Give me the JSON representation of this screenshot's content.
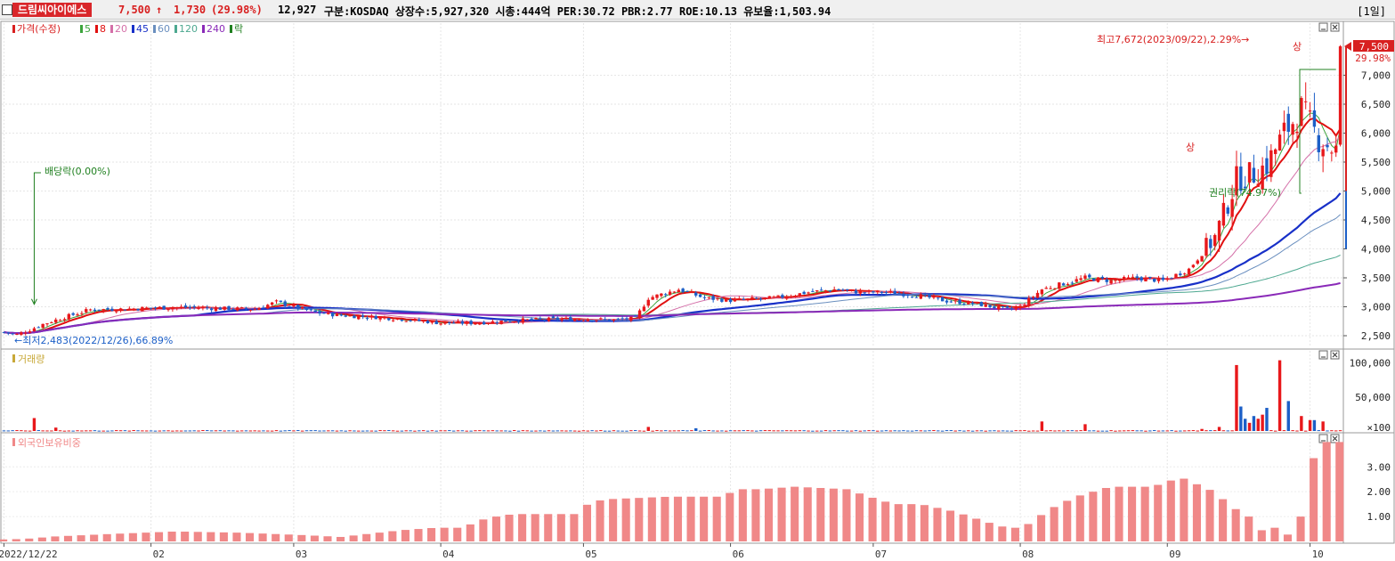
{
  "header": {
    "stock_name": "드림씨아이에스",
    "price": "7,500",
    "change_arrow": "↑",
    "change": "1,730",
    "change_pct": "(29.98%)",
    "volume": "12,927",
    "stats": "구분:KOSDAQ 상장수:5,927,320 시총:444억 PER:30.72 PBR:2.77 ROE:10.13 유보율:1,503.94",
    "period": "[1일]"
  },
  "colors": {
    "up": "#e8181b",
    "down": "#1c5fc7",
    "ma5": "#3ca43c",
    "ma8": "#e01010",
    "ma20": "#d46fa8",
    "ma45": "#1830c8",
    "ma60": "#6a8fbf",
    "ma120": "#4da890",
    "ma240": "#8a2ab8",
    "foreign": "#f08888"
  },
  "icons": [
    "checkbox-icon",
    "panel-minimize-icon",
    "panel-close-icon",
    "price-marker-icon"
  ],
  "chart_data": [
    {
      "type": "candlestick",
      "panel": "price",
      "legend": [
        {
          "label": "가격(수정)",
          "color": "#d82020"
        },
        {
          "label": "5",
          "color": "#3ca43c"
        },
        {
          "label": "8",
          "color": "#e01010"
        },
        {
          "label": "20",
          "color": "#d46fa8"
        },
        {
          "label": "45",
          "color": "#1830c8"
        },
        {
          "label": "60",
          "color": "#6a8fbf"
        },
        {
          "label": "120",
          "color": "#4da890"
        },
        {
          "label": "240",
          "color": "#8a2ab8"
        },
        {
          "label": "락",
          "color": "#208020"
        }
      ],
      "ylim": [
        2300,
        7900
      ],
      "yticks": [
        "2,500",
        "3,000",
        "3,500",
        "4,000",
        "4,500",
        "5,000",
        "5,500",
        "6,000",
        "6,500",
        "7,000"
      ],
      "xticks": [
        "2022/12/22",
        "02",
        "03",
        "04",
        "05",
        "06",
        "07",
        "08",
        "09",
        "10"
      ],
      "xtick_index": [
        0,
        34,
        67,
        101,
        134,
        168,
        201,
        235,
        269,
        302
      ],
      "n_bars": 310,
      "price_knots": [
        [
          0,
          2560
        ],
        [
          3,
          2520
        ],
        [
          6,
          2600
        ],
        [
          9,
          2700
        ],
        [
          14,
          2820
        ],
        [
          20,
          2950
        ],
        [
          27,
          2960
        ],
        [
          34,
          2980
        ],
        [
          42,
          2990
        ],
        [
          50,
          2970
        ],
        [
          58,
          2960
        ],
        [
          63,
          3080
        ],
        [
          67,
          3000
        ],
        [
          72,
          2900
        ],
        [
          78,
          2850
        ],
        [
          86,
          2820
        ],
        [
          93,
          2780
        ],
        [
          101,
          2720
        ],
        [
          109,
          2720
        ],
        [
          117,
          2760
        ],
        [
          125,
          2780
        ],
        [
          134,
          2790
        ],
        [
          141,
          2770
        ],
        [
          146,
          2800
        ],
        [
          149,
          3150
        ],
        [
          156,
          3300
        ],
        [
          162,
          3150
        ],
        [
          168,
          3110
        ],
        [
          178,
          3150
        ],
        [
          186,
          3250
        ],
        [
          192,
          3300
        ],
        [
          198,
          3250
        ],
        [
          204,
          3250
        ],
        [
          211,
          3200
        ],
        [
          218,
          3100
        ],
        [
          225,
          3050
        ],
        [
          232,
          2950
        ],
        [
          235,
          3000
        ],
        [
          240,
          3300
        ],
        [
          246,
          3420
        ],
        [
          250,
          3500
        ],
        [
          256,
          3450
        ],
        [
          262,
          3500
        ],
        [
          268,
          3450
        ],
        [
          274,
          3650
        ],
        [
          280,
          4200
        ],
        [
          285,
          5200
        ],
        [
          289,
          5300
        ],
        [
          292,
          5450
        ],
        [
          296,
          6000
        ],
        [
          300,
          6400
        ],
        [
          304,
          5900
        ],
        [
          308,
          5700
        ],
        [
          310,
          7500
        ]
      ],
      "annotations": {
        "high": "최고7,672(2023/09/22),2.29%→",
        "low": "←최저2,483(2022/12/26),66.89%",
        "dividend": "배당락(0.00%)",
        "rights": "권리락(74.97%)",
        "upper_limit": "상",
        "last_price": "7,500",
        "last_pct": "29.98%"
      }
    },
    {
      "type": "bar",
      "panel": "volume",
      "title": "거래량",
      "ylim": [
        0,
        110000
      ],
      "yticks": [
        "100,000",
        "50,000",
        "×100"
      ],
      "spikes": [
        [
          7,
          19000
        ],
        [
          12,
          5000
        ],
        [
          149,
          6000
        ],
        [
          160,
          4000
        ],
        [
          240,
          14000
        ],
        [
          250,
          10000
        ],
        [
          277,
          3000
        ],
        [
          281,
          6000
        ],
        [
          285,
          97000
        ],
        [
          286,
          36000
        ],
        [
          287,
          18000
        ],
        [
          288,
          12000
        ],
        [
          289,
          22000
        ],
        [
          290,
          18000
        ],
        [
          291,
          24000
        ],
        [
          292,
          34000
        ],
        [
          295,
          104000
        ],
        [
          297,
          44000
        ],
        [
          300,
          22000
        ],
        [
          302,
          16000
        ],
        [
          303,
          16000
        ],
        [
          305,
          14000
        ]
      ]
    },
    {
      "type": "bar",
      "panel": "foreign",
      "title": "외국인보유비중",
      "ylim": [
        0,
        4.3
      ],
      "yticks": [
        "1.00",
        "2.00",
        "3.00"
      ],
      "knots": [
        [
          0,
          0.08
        ],
        [
          5,
          0.1
        ],
        [
          12,
          0.2
        ],
        [
          25,
          0.3
        ],
        [
          40,
          0.4
        ],
        [
          55,
          0.35
        ],
        [
          70,
          0.25
        ],
        [
          78,
          0.18
        ],
        [
          92,
          0.45
        ],
        [
          100,
          0.55
        ],
        [
          106,
          0.55
        ],
        [
          112,
          0.95
        ],
        [
          118,
          1.1
        ],
        [
          132,
          1.1
        ],
        [
          136,
          1.6
        ],
        [
          140,
          1.7
        ],
        [
          154,
          1.8
        ],
        [
          166,
          1.8
        ],
        [
          170,
          2.1
        ],
        [
          175,
          2.1
        ],
        [
          183,
          2.2
        ],
        [
          195,
          2.1
        ],
        [
          202,
          1.7
        ],
        [
          206,
          1.5
        ],
        [
          212,
          1.5
        ],
        [
          220,
          1.2
        ],
        [
          227,
          0.8
        ],
        [
          233,
          0.5
        ],
        [
          237,
          0.7
        ],
        [
          242,
          1.3
        ],
        [
          248,
          1.8
        ],
        [
          256,
          2.2
        ],
        [
          264,
          2.2
        ],
        [
          268,
          2.3
        ],
        [
          272,
          2.6
        ],
        [
          276,
          2.3
        ],
        [
          280,
          2.0
        ],
        [
          284,
          1.4
        ],
        [
          288,
          1.0
        ],
        [
          290,
          0.6
        ],
        [
          292,
          0.3
        ],
        [
          294,
          0.55
        ],
        [
          296,
          0.2
        ],
        [
          298,
          0.35
        ],
        [
          300,
          1.0
        ],
        [
          302,
          2.7
        ],
        [
          304,
          4.0
        ],
        [
          310,
          4.0
        ]
      ]
    }
  ]
}
